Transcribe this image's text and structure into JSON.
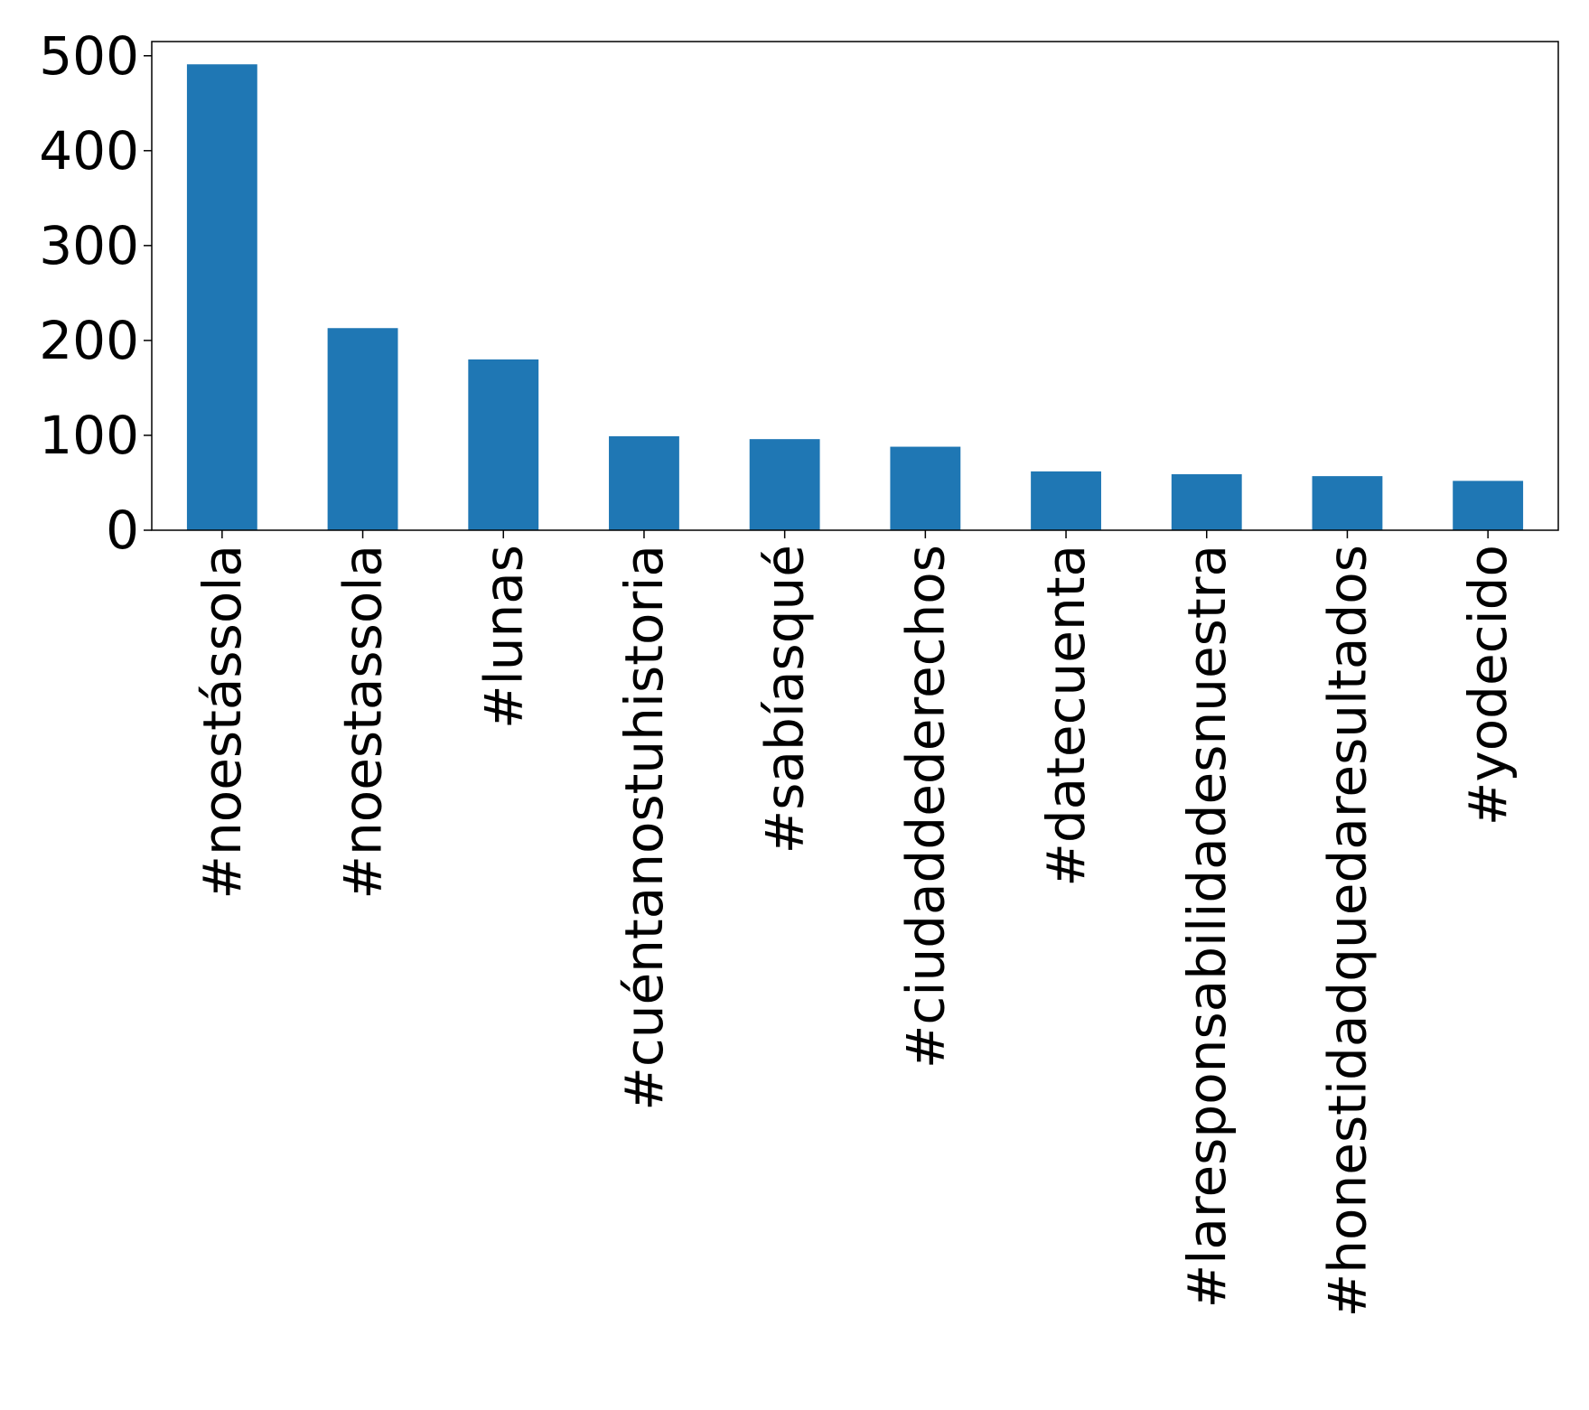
{
  "chart_data": {
    "type": "bar",
    "title": "",
    "xlabel": "",
    "ylabel": "",
    "categories": [
      "#noestássola",
      "#noestassola",
      "#lunas",
      "#cuéntanostuhistoria",
      "#sabíasqué",
      "#ciudaddederechos",
      "#datecuenta",
      "#laresponsabilidadesnuestra",
      "#honestidadquedaresultados",
      "#yodecido"
    ],
    "values": [
      491,
      213,
      180,
      99,
      96,
      88,
      62,
      59,
      57,
      52
    ],
    "ylim": [
      0,
      515
    ],
    "yticks": [
      0,
      100,
      200,
      300,
      400,
      500
    ],
    "tick_labels": [
      "0",
      "100",
      "200",
      "300",
      "400",
      "500"
    ],
    "bar_color": "#1f77b4",
    "grid": false,
    "legend": "none"
  }
}
